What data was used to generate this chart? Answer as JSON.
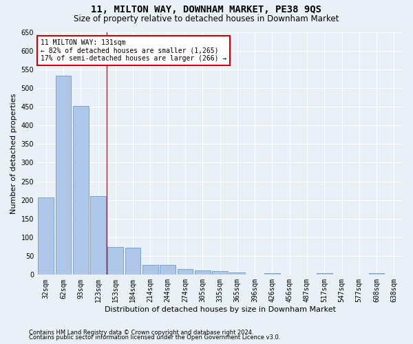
{
  "title": "11, MILTON WAY, DOWNHAM MARKET, PE38 9QS",
  "subtitle": "Size of property relative to detached houses in Downham Market",
  "xlabel": "Distribution of detached houses by size in Downham Market",
  "ylabel": "Number of detached properties",
  "categories": [
    "32sqm",
    "62sqm",
    "93sqm",
    "123sqm",
    "153sqm",
    "184sqm",
    "214sqm",
    "244sqm",
    "274sqm",
    "305sqm",
    "335sqm",
    "365sqm",
    "396sqm",
    "426sqm",
    "456sqm",
    "487sqm",
    "517sqm",
    "547sqm",
    "577sqm",
    "608sqm",
    "638sqm"
  ],
  "values": [
    207,
    533,
    452,
    211,
    75,
    73,
    27,
    26,
    15,
    12,
    9,
    6,
    0,
    5,
    0,
    0,
    5,
    0,
    0,
    5,
    0
  ],
  "bar_color": "#aec6e8",
  "bar_edge_color": "#5b8fc9",
  "annotation_text_line1": "11 MILTON WAY: 131sqm",
  "annotation_text_line2": "← 82% of detached houses are smaller (1,265)",
  "annotation_text_line3": "17% of semi-detached houses are larger (266) →",
  "annotation_box_color": "#ffffff",
  "annotation_box_edge": "#cc0000",
  "ylim": [
    0,
    650
  ],
  "yticks": [
    0,
    50,
    100,
    150,
    200,
    250,
    300,
    350,
    400,
    450,
    500,
    550,
    600,
    650
  ],
  "footnote1": "Contains HM Land Registry data © Crown copyright and database right 2024.",
  "footnote2": "Contains public sector information licensed under the Open Government Licence v3.0.",
  "bg_color": "#eaf0f8",
  "grid_color": "#ffffff",
  "title_fontsize": 10,
  "subtitle_fontsize": 8.5,
  "xlabel_fontsize": 8,
  "ylabel_fontsize": 8,
  "tick_fontsize": 7,
  "annot_fontsize": 7,
  "footnote_fontsize": 6
}
